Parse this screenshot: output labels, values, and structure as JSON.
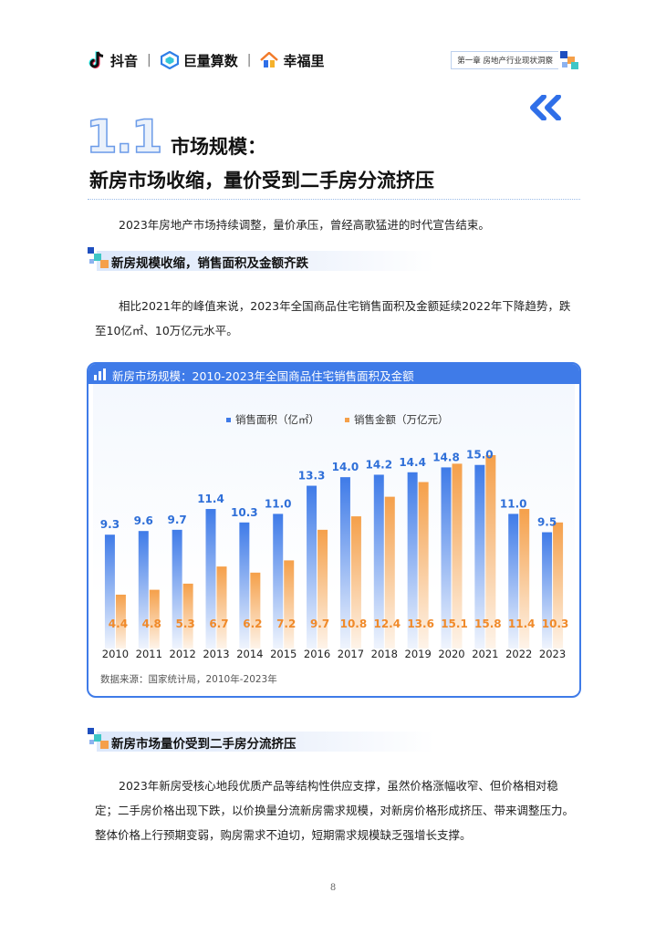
{
  "header": {
    "logos": [
      "抖音",
      "巨量算数",
      "幸福里"
    ],
    "chapter": "第一章  房地产行业现状洞察"
  },
  "title": {
    "number": "1.1",
    "line1": "市场规模：",
    "line2": "新房市场收缩，量价受到二手房分流挤压"
  },
  "intro": "2023年房地产市场持续调整，量价承压，曾经高歌猛进的时代宣告结束。",
  "section1": {
    "title": "新房规模收缩，销售面积及金额齐跌",
    "body": "相比2021年的峰值来说，2023年全国商品住宅销售面积及金额延续2022年下降趋势，跌至10亿㎡、10万亿元水平。"
  },
  "chart_card": {
    "title": "新房市场规模：2010-2023年全国商品住宅销售面积及金额",
    "source": "数据来源：国家统计局，2010年-2023年"
  },
  "chart_data": {
    "type": "bar",
    "title": "新房市场规模：2010-2023年全国商品住宅销售面积及金额",
    "categories": [
      "2010",
      "2011",
      "2012",
      "2013",
      "2014",
      "2015",
      "2016",
      "2017",
      "2018",
      "2019",
      "2020",
      "2021",
      "2022",
      "2023"
    ],
    "series": [
      {
        "name": "销售面积（亿㎡）",
        "values": [
          9.3,
          9.6,
          9.7,
          11.4,
          10.3,
          11.0,
          13.3,
          14.0,
          14.2,
          14.4,
          14.8,
          15.0,
          11.0,
          9.5
        ],
        "color": "#3f7be8"
      },
      {
        "name": "销售金额（万亿元）",
        "values": [
          4.4,
          4.8,
          5.3,
          6.7,
          6.2,
          7.2,
          9.7,
          10.8,
          12.4,
          13.6,
          15.1,
          15.8,
          11.4,
          10.3
        ],
        "color": "#f5a04a"
      }
    ],
    "legend_position": "top-center",
    "grid": false
  },
  "section2": {
    "title": "新房市场量价受到二手房分流挤压",
    "body": "2023年新房受核心地段优质产品等结构性供应支撑，虽然价格涨幅收窄、但价格相对稳定；二手房价格出现下跌，以价换量分流新房需求规模，对新房价格形成挤压、带来调整压力。整体价格上行预期变弱，购房需求不迫切，短期需求规模缺乏强增长支撑。"
  },
  "page_number": "8",
  "colors": {
    "accent": "#3f7be8",
    "orange": "#f5a04a",
    "teal": "#3ec6c6",
    "dark_blue": "#1f4fbf"
  }
}
